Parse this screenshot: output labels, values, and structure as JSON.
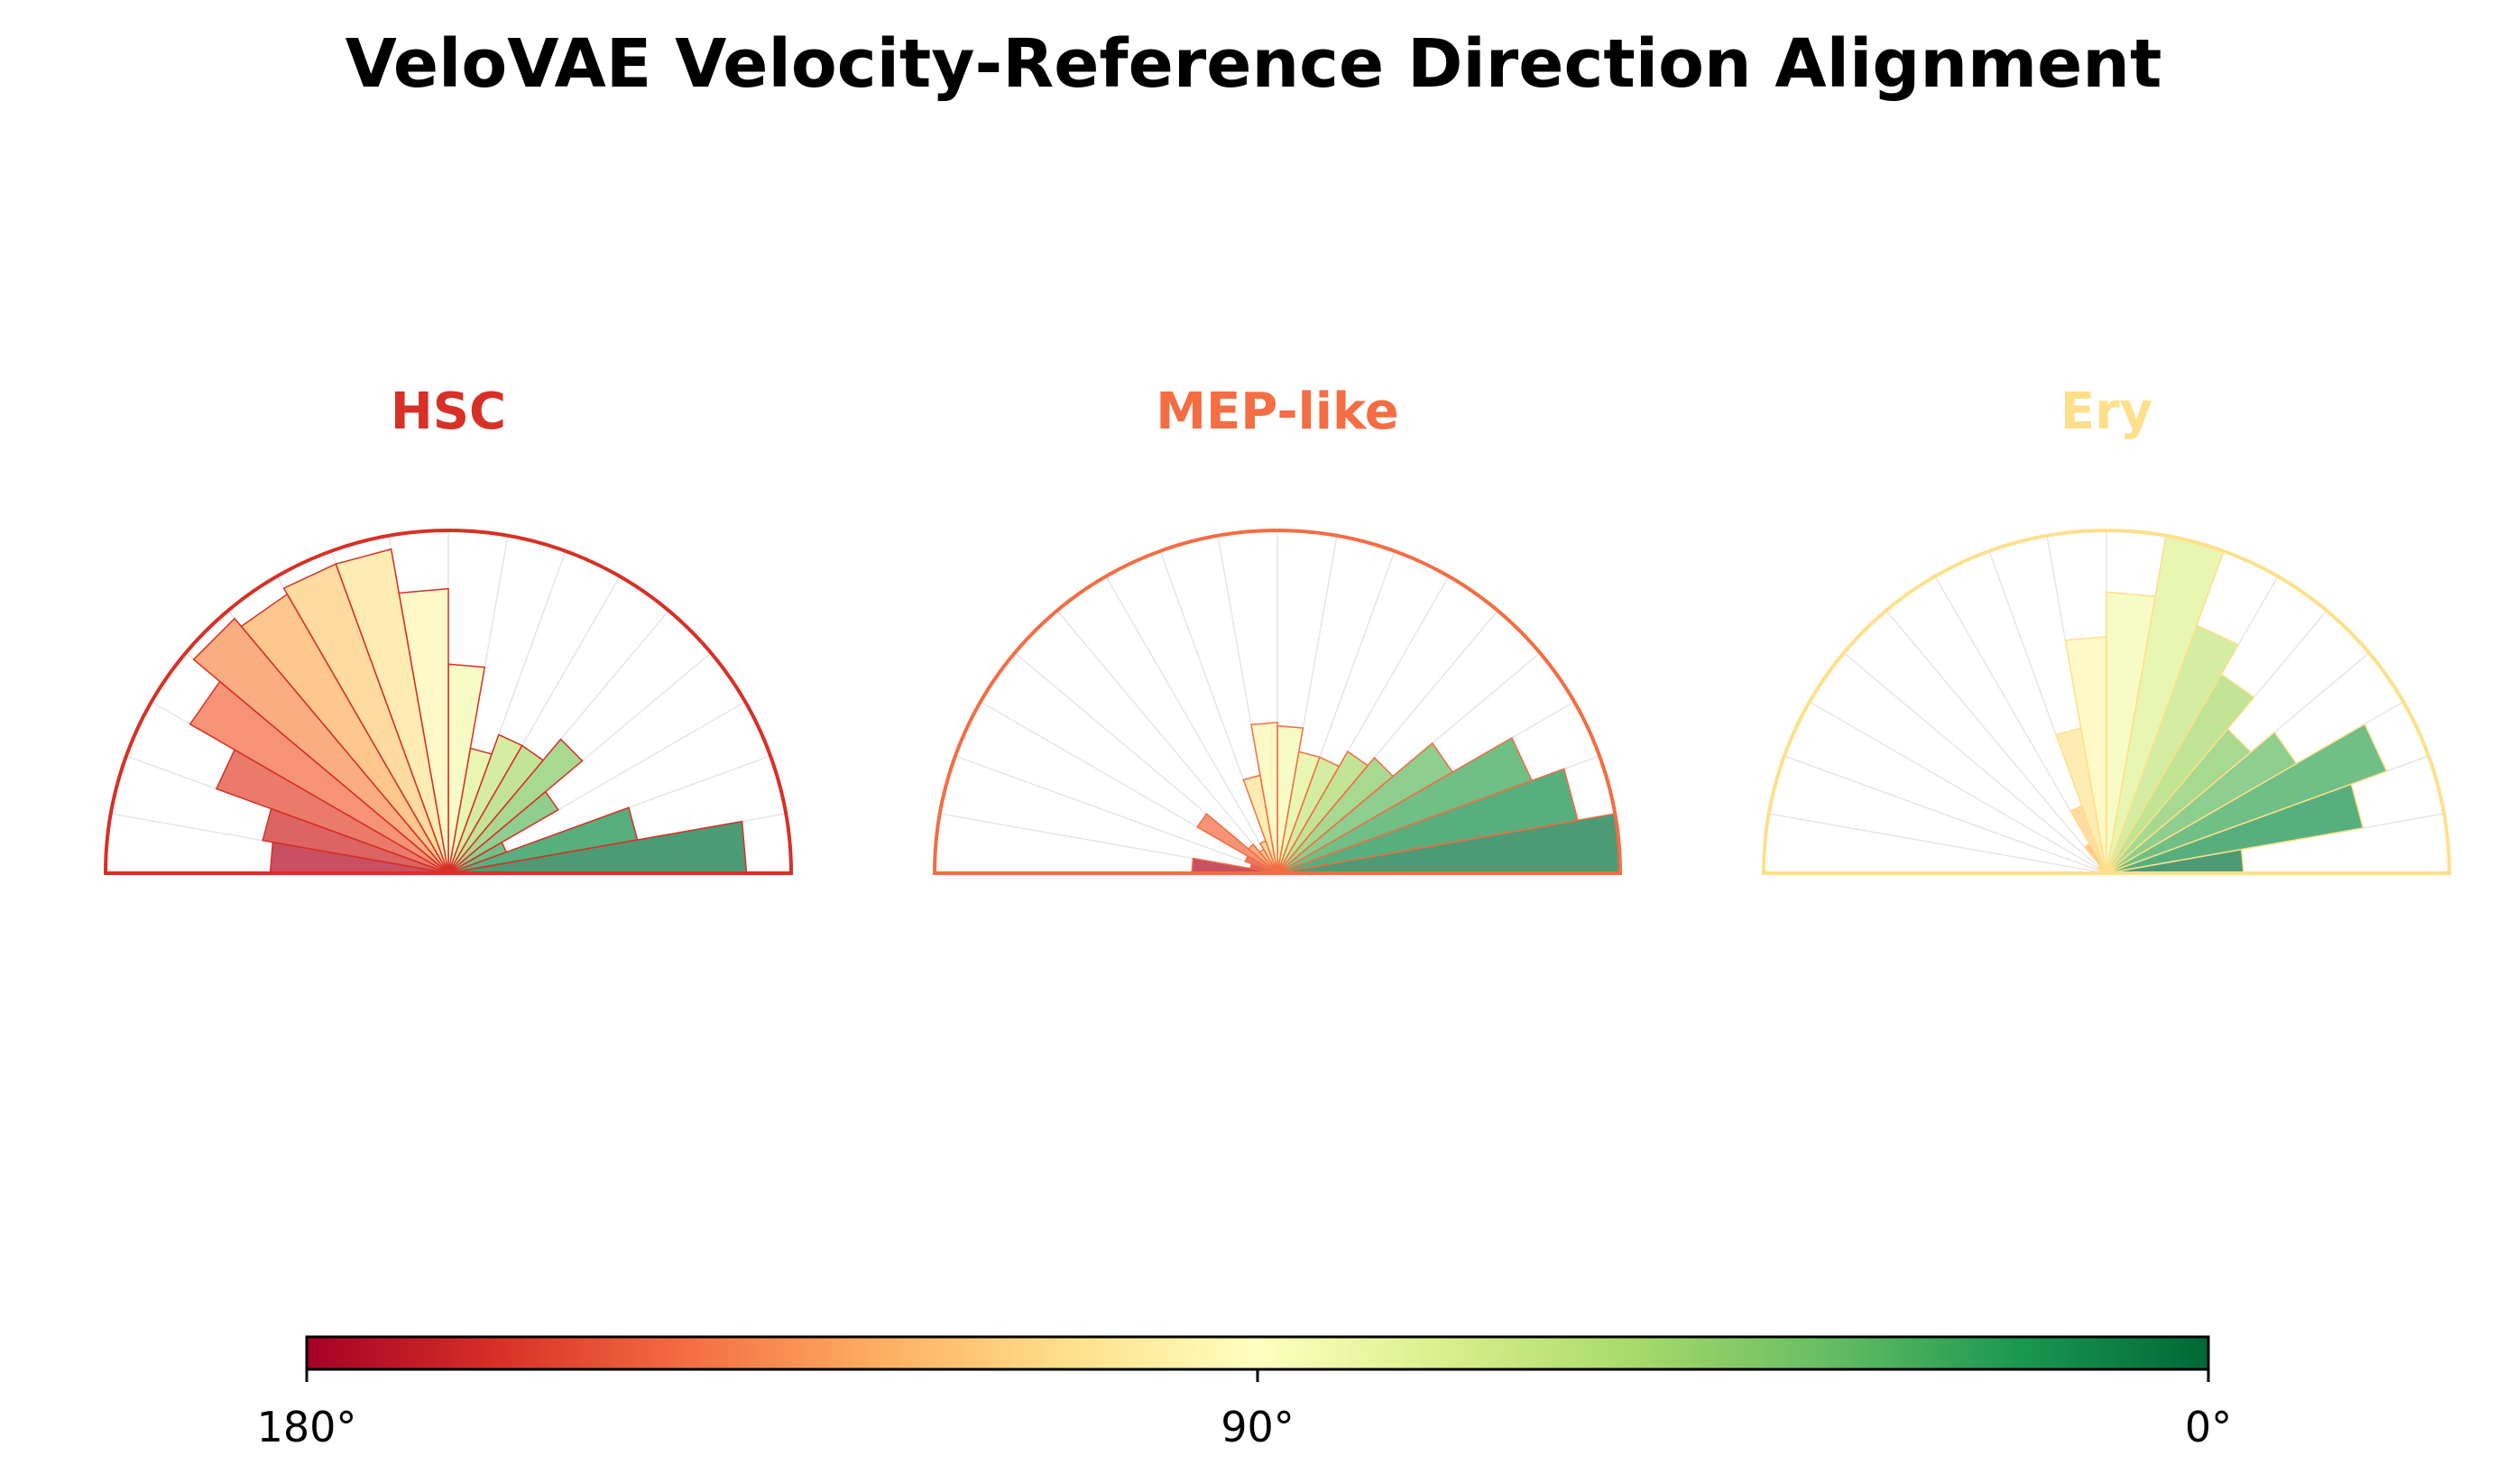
{
  "chart_data": {
    "type": "polar-bar",
    "title": "VeloVAE Velocity-Reference Direction Alignment",
    "angle_unit": "degrees",
    "bin_width_deg": 10,
    "bin_centers_deg": [
      5,
      15,
      25,
      35,
      45,
      55,
      65,
      75,
      85,
      95,
      105,
      115,
      125,
      135,
      145,
      155,
      165,
      175
    ],
    "radius_scale": "normalized (outer arc = 1.0)",
    "panels": [
      {
        "name": "HSC",
        "color": "#d73027",
        "values": [
          0.87,
          0.56,
          0.18,
          0.37,
          0.51,
          0.43,
          0.43,
          0.37,
          0.61,
          0.83,
          0.96,
          0.96,
          0.94,
          0.97,
          0.87,
          0.72,
          0.55,
          0.52
        ]
      },
      {
        "name": "MEP-like",
        "color": "#f46d43",
        "values": [
          1.0,
          0.89,
          0.79,
          0.59,
          0.44,
          0.41,
          0.36,
          0.36,
          0.43,
          0.44,
          0.29,
          0.1,
          0.08,
          0.11,
          0.27,
          0.1,
          0.08,
          0.25
        ]
      },
      {
        "name": "Ery",
        "color": "#fee08b",
        "values": [
          0.4,
          0.76,
          0.87,
          0.64,
          0.55,
          0.67,
          0.77,
          1.0,
          0.82,
          0.69,
          0.43,
          0.21,
          0.1,
          0.03,
          0.03,
          0.01,
          0.01,
          0.01
        ]
      }
    ],
    "colorbar": {
      "colormap": "RdYlGn_r",
      "range_deg": [
        180,
        0
      ],
      "ticks": [
        "180°",
        "90°",
        "0°"
      ]
    }
  }
}
